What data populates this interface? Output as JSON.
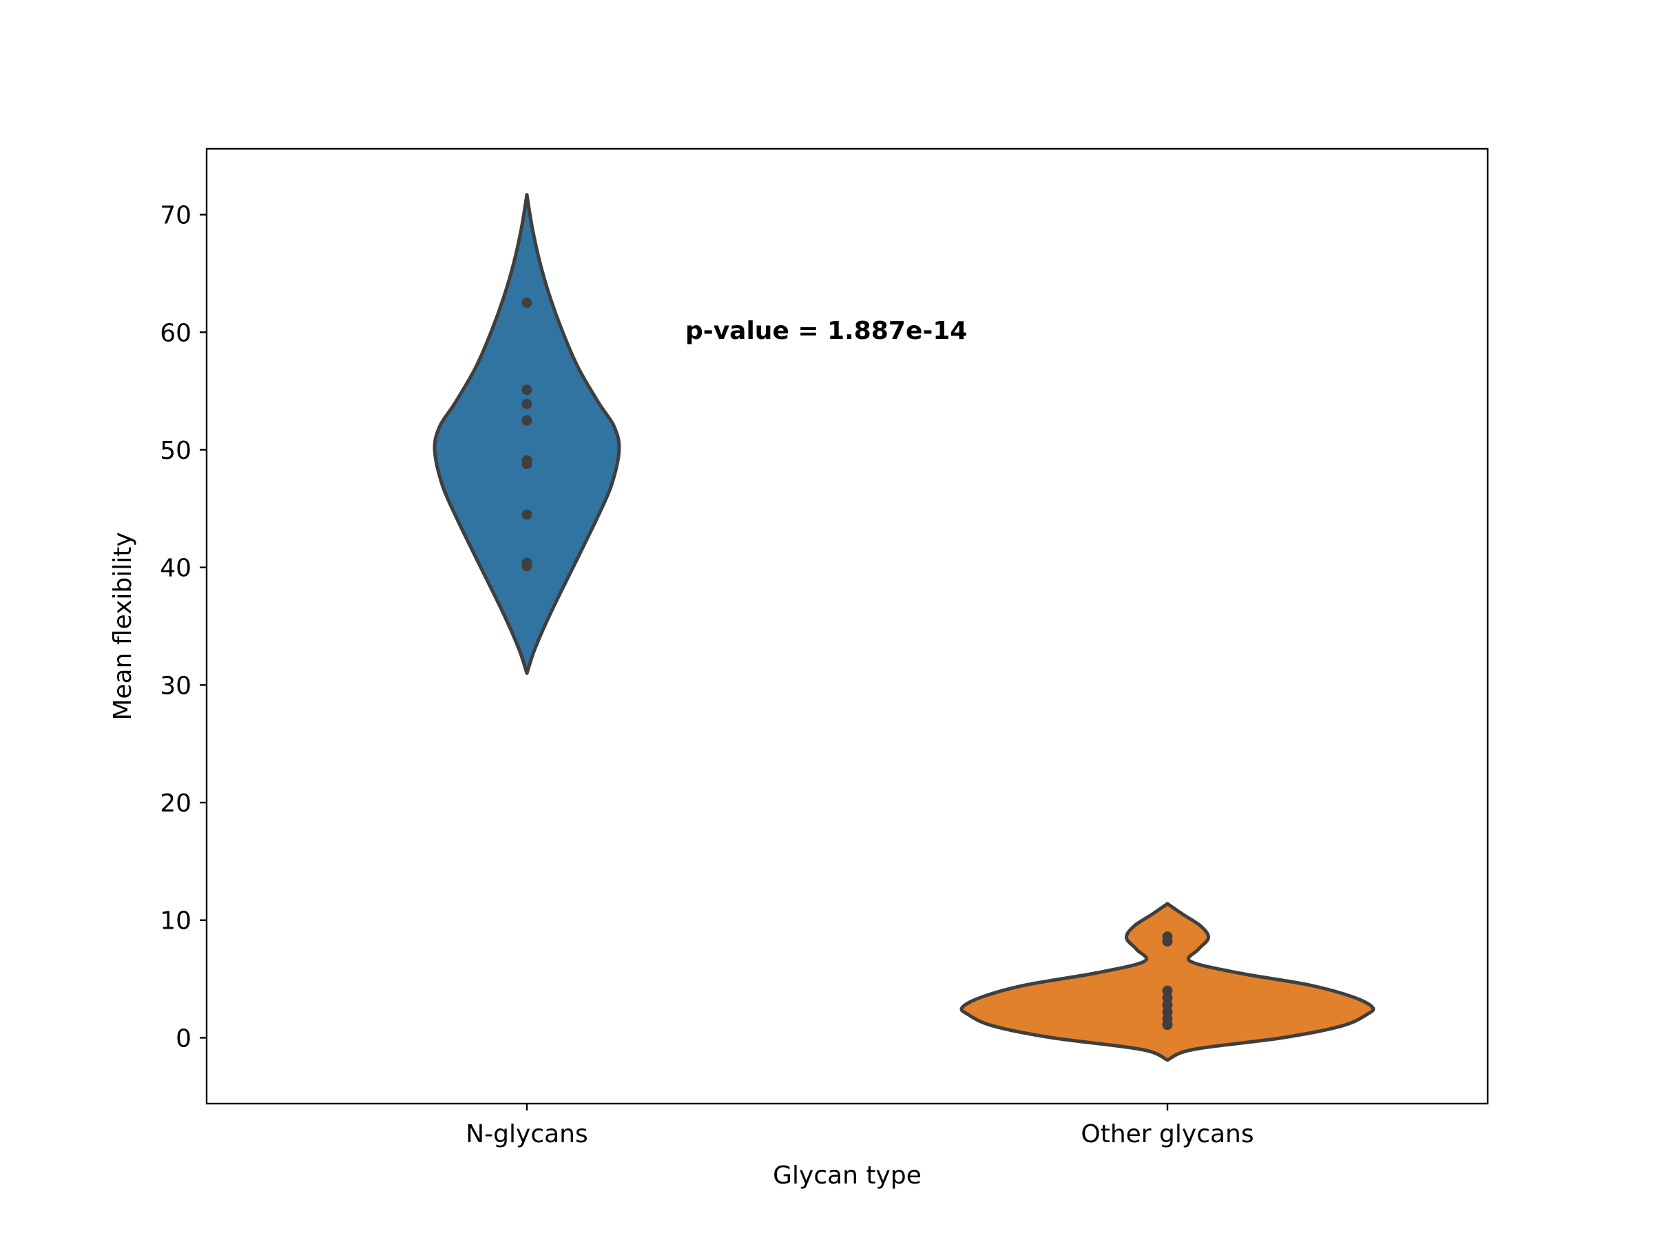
{
  "chart_data": {
    "type": "violin",
    "title": "",
    "xlabel": "Glycan type",
    "ylabel": "Mean flexibility",
    "categories": [
      "N-glycans",
      "Other glycans"
    ],
    "ylim": [
      -5.6,
      75.6
    ],
    "yticks": [
      0,
      10,
      20,
      30,
      40,
      50,
      60,
      70
    ],
    "ytick_labels": [
      "0",
      "10",
      "20",
      "30",
      "40",
      "50",
      "60",
      "70"
    ],
    "grid": false,
    "legend": "none",
    "annotation": "p-value = 1.887e-14",
    "series": [
      {
        "category": "N-glycans",
        "color": "#3274a1",
        "points": [
          62.5,
          55.1,
          53.9,
          52.5,
          49.1,
          48.8,
          44.5,
          40.4,
          40.1
        ],
        "density": [
          [
            31.0,
            0.0
          ],
          [
            33.0,
            0.03
          ],
          [
            36.0,
            0.09
          ],
          [
            40.0,
            0.18
          ],
          [
            44.0,
            0.27
          ],
          [
            47.0,
            0.33
          ],
          [
            50.0,
            0.36
          ],
          [
            52.0,
            0.34
          ],
          [
            54.0,
            0.28
          ],
          [
            57.0,
            0.2
          ],
          [
            60.0,
            0.14
          ],
          [
            63.0,
            0.09
          ],
          [
            66.0,
            0.05
          ],
          [
            69.0,
            0.02
          ],
          [
            71.7,
            0.0
          ]
        ]
      },
      {
        "category": "Other glycans",
        "color": "#e1812c",
        "points": [
          8.6,
          8.2,
          4.0,
          3.4,
          2.8,
          2.2,
          1.6,
          1.1
        ],
        "density": [
          [
            -1.9,
            0.0
          ],
          [
            -1.0,
            0.1
          ],
          [
            0.0,
            0.45
          ],
          [
            1.0,
            0.68
          ],
          [
            2.0,
            0.78
          ],
          [
            2.6,
            0.8
          ],
          [
            3.5,
            0.72
          ],
          [
            4.5,
            0.55
          ],
          [
            5.5,
            0.28
          ],
          [
            6.5,
            0.09
          ],
          [
            7.5,
            0.12
          ],
          [
            8.5,
            0.16
          ],
          [
            9.5,
            0.13
          ],
          [
            10.5,
            0.06
          ],
          [
            11.4,
            0.0
          ]
        ]
      }
    ]
  }
}
